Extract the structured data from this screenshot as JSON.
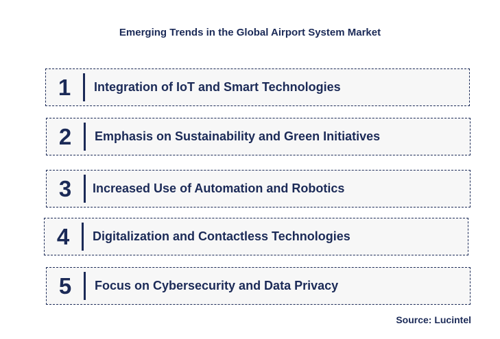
{
  "title": "Emerging Trends in the Global Airport System Market",
  "trends": [
    {
      "number": "1",
      "label": "Integration of IoT and Smart Technologies"
    },
    {
      "number": "2",
      "label": "Emphasis on Sustainability and Green Initiatives"
    },
    {
      "number": "3",
      "label": "Increased Use of Automation and Robotics"
    },
    {
      "number": "4",
      "label": "Digitalization and Contactless Technologies"
    },
    {
      "number": "5",
      "label": "Focus on Cybersecurity and Data Privacy"
    }
  ],
  "source": "Source: Lucintel",
  "colors": {
    "primary": "#1b2a57",
    "box_fill": "#f7f7f7"
  }
}
